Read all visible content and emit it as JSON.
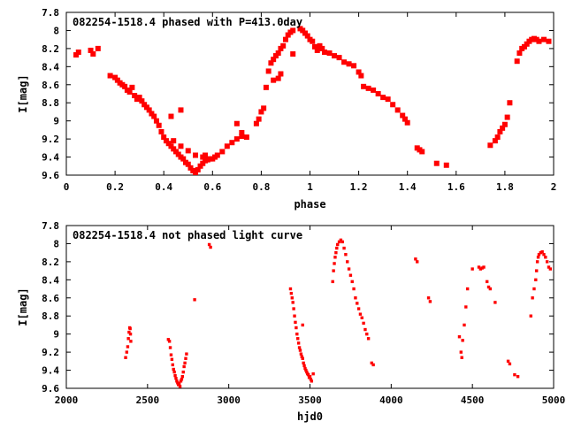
{
  "chart_data": [
    {
      "type": "scatter",
      "title": "082254-1518.4 phased with P=413.0day",
      "xlabel": "phase",
      "ylabel": "I[mag]",
      "xlim": [
        0,
        2
      ],
      "ylim": [
        9.6,
        7.8
      ],
      "y_inverted": true,
      "grid": false,
      "marker_color": "#ff0000",
      "xticks": [
        "0",
        "0.2",
        "0.4",
        "0.6",
        "0.8",
        "1",
        "1.2",
        "1.4",
        "1.6",
        "1.8",
        "2"
      ],
      "yticks": [
        "7.8",
        "8",
        "8.2",
        "8.4",
        "8.6",
        "8.8",
        "9",
        "9.2",
        "9.4",
        "9.6"
      ],
      "series": [
        {
          "points": [
            [
              0.04,
              8.27
            ],
            [
              0.05,
              8.24
            ],
            [
              0.1,
              8.22
            ],
            [
              0.11,
              8.26
            ],
            [
              0.13,
              8.2
            ],
            [
              0.18,
              8.5
            ],
            [
              0.2,
              8.52
            ],
            [
              0.21,
              8.55
            ],
            [
              0.22,
              8.58
            ],
            [
              0.23,
              8.6
            ],
            [
              0.24,
              8.62
            ],
            [
              0.25,
              8.66
            ],
            [
              0.26,
              8.68
            ],
            [
              0.27,
              8.63
            ],
            [
              0.28,
              8.72
            ],
            [
              0.29,
              8.76
            ],
            [
              0.3,
              8.74
            ],
            [
              0.31,
              8.78
            ],
            [
              0.32,
              8.82
            ],
            [
              0.33,
              8.85
            ],
            [
              0.34,
              8.88
            ],
            [
              0.35,
              8.92
            ],
            [
              0.36,
              8.95
            ],
            [
              0.37,
              9.0
            ],
            [
              0.38,
              9.05
            ],
            [
              0.39,
              9.12
            ],
            [
              0.4,
              9.18
            ],
            [
              0.41,
              9.22
            ],
            [
              0.42,
              9.25
            ],
            [
              0.43,
              9.28
            ],
            [
              0.44,
              9.31
            ],
            [
              0.45,
              9.34
            ],
            [
              0.46,
              9.37
            ],
            [
              0.47,
              9.4
            ],
            [
              0.48,
              9.42
            ],
            [
              0.49,
              9.46
            ],
            [
              0.5,
              9.48
            ],
            [
              0.51,
              9.52
            ],
            [
              0.52,
              9.55
            ],
            [
              0.53,
              9.57
            ],
            [
              0.54,
              9.54
            ],
            [
              0.55,
              9.5
            ],
            [
              0.56,
              9.47
            ],
            [
              0.57,
              9.44
            ],
            [
              0.58,
              9.43
            ],
            [
              0.6,
              9.42
            ],
            [
              0.62,
              9.38
            ],
            [
              0.64,
              9.34
            ],
            [
              0.66,
              9.28
            ],
            [
              0.68,
              9.24
            ],
            [
              0.7,
              9.2
            ],
            [
              0.72,
              9.17
            ],
            [
              0.44,
              9.22
            ],
            [
              0.47,
              9.28
            ],
            [
              0.5,
              9.33
            ],
            [
              0.53,
              9.38
            ],
            [
              0.56,
              9.4
            ],
            [
              0.59,
              9.42
            ],
            [
              0.61,
              9.4
            ],
            [
              0.47,
              8.88
            ],
            [
              0.43,
              8.95
            ],
            [
              0.57,
              9.38
            ],
            [
              0.7,
              9.03
            ],
            [
              0.72,
              9.13
            ],
            [
              0.74,
              9.18
            ],
            [
              0.78,
              9.03
            ],
            [
              0.79,
              8.98
            ],
            [
              0.8,
              8.9
            ],
            [
              0.81,
              8.86
            ],
            [
              0.82,
              8.63
            ],
            [
              0.83,
              8.45
            ],
            [
              0.84,
              8.36
            ],
            [
              0.85,
              8.32
            ],
            [
              0.86,
              8.28
            ],
            [
              0.87,
              8.25
            ],
            [
              0.88,
              8.2
            ],
            [
              0.89,
              8.17
            ],
            [
              0.9,
              8.1
            ],
            [
              0.91,
              8.05
            ],
            [
              0.92,
              8.02
            ],
            [
              0.93,
              8.0
            ],
            [
              0.87,
              8.53
            ],
            [
              0.88,
              8.48
            ],
            [
              0.85,
              8.55
            ],
            [
              0.93,
              8.26
            ],
            [
              0.96,
              7.98
            ],
            [
              0.97,
              8.0
            ],
            [
              0.98,
              8.03
            ],
            [
              0.99,
              8.06
            ],
            [
              1.0,
              8.1
            ],
            [
              1.01,
              8.12
            ],
            [
              1.02,
              8.18
            ],
            [
              1.03,
              8.22
            ],
            [
              1.04,
              8.17
            ],
            [
              1.05,
              8.2
            ],
            [
              1.06,
              8.24
            ],
            [
              1.08,
              8.25
            ],
            [
              1.1,
              8.28
            ],
            [
              1.12,
              8.3
            ],
            [
              1.14,
              8.35
            ],
            [
              1.16,
              8.37
            ],
            [
              1.18,
              8.39
            ],
            [
              1.2,
              8.46
            ],
            [
              1.21,
              8.5
            ],
            [
              1.22,
              8.62
            ],
            [
              1.24,
              8.64
            ],
            [
              1.26,
              8.66
            ],
            [
              1.28,
              8.7
            ],
            [
              1.3,
              8.74
            ],
            [
              1.32,
              8.76
            ],
            [
              1.34,
              8.82
            ],
            [
              1.36,
              8.88
            ],
            [
              1.38,
              8.94
            ],
            [
              1.39,
              8.98
            ],
            [
              1.4,
              9.02
            ],
            [
              1.44,
              9.3
            ],
            [
              1.45,
              9.32
            ],
            [
              1.46,
              9.34
            ],
            [
              1.52,
              9.47
            ],
            [
              1.56,
              9.49
            ],
            [
              1.74,
              9.27
            ],
            [
              1.76,
              9.22
            ],
            [
              1.77,
              9.18
            ],
            [
              1.78,
              9.12
            ],
            [
              1.79,
              9.08
            ],
            [
              1.8,
              9.04
            ],
            [
              1.81,
              8.96
            ],
            [
              1.82,
              8.8
            ],
            [
              1.85,
              8.34
            ],
            [
              1.86,
              8.25
            ],
            [
              1.87,
              8.2
            ],
            [
              1.88,
              8.18
            ],
            [
              1.89,
              8.15
            ],
            [
              1.9,
              8.12
            ],
            [
              1.91,
              8.1
            ],
            [
              1.92,
              8.09
            ],
            [
              1.93,
              8.1
            ],
            [
              1.94,
              8.12
            ],
            [
              1.96,
              8.1
            ],
            [
              1.98,
              8.12
            ]
          ]
        }
      ]
    },
    {
      "type": "scatter",
      "title": "082254-1518.4 not phased light curve",
      "xlabel": "hjd0",
      "ylabel": "I[mag]",
      "xlim": [
        2000,
        5000
      ],
      "ylim": [
        9.6,
        7.8
      ],
      "y_inverted": true,
      "grid": false,
      "marker_color": "#ff0000",
      "xticks": [
        "2000",
        "2500",
        "3000",
        "3500",
        "4000",
        "4500",
        "5000"
      ],
      "yticks": [
        "7.8",
        "8",
        "8.2",
        "8.4",
        "8.6",
        "8.8",
        "9",
        "9.2",
        "9.4",
        "9.6"
      ],
      "series": [
        {
          "points": [
            [
              2365,
              9.26
            ],
            [
              2372,
              9.2
            ],
            [
              2378,
              9.14
            ],
            [
              2382,
              9.05
            ],
            [
              2386,
              8.98
            ],
            [
              2390,
              8.93
            ],
            [
              2393,
              8.94
            ],
            [
              2395,
              9.0
            ],
            [
              2397,
              9.08
            ],
            [
              2628,
              9.06
            ],
            [
              2635,
              9.08
            ],
            [
              2640,
              9.15
            ],
            [
              2645,
              9.23
            ],
            [
              2650,
              9.28
            ],
            [
              2655,
              9.34
            ],
            [
              2660,
              9.39
            ],
            [
              2665,
              9.42
            ],
            [
              2670,
              9.46
            ],
            [
              2675,
              9.49
            ],
            [
              2680,
              9.52
            ],
            [
              2685,
              9.54
            ],
            [
              2690,
              9.56
            ],
            [
              2695,
              9.55
            ],
            [
              2700,
              9.58
            ],
            [
              2705,
              9.52
            ],
            [
              2710,
              9.5
            ],
            [
              2715,
              9.47
            ],
            [
              2720,
              9.42
            ],
            [
              2725,
              9.36
            ],
            [
              2730,
              9.32
            ],
            [
              2735,
              9.27
            ],
            [
              2740,
              9.22
            ],
            [
              2790,
              8.62
            ],
            [
              2880,
              8.01
            ],
            [
              2888,
              8.04
            ],
            [
              3380,
              8.5
            ],
            [
              3385,
              8.55
            ],
            [
              3390,
              8.6
            ],
            [
              3395,
              8.65
            ],
            [
              3400,
              8.72
            ],
            [
              3405,
              8.8
            ],
            [
              3410,
              8.87
            ],
            [
              3415,
              8.93
            ],
            [
              3420,
              9.0
            ],
            [
              3425,
              9.05
            ],
            [
              3430,
              9.1
            ],
            [
              3435,
              9.15
            ],
            [
              3440,
              9.18
            ],
            [
              3445,
              9.22
            ],
            [
              3450,
              9.25
            ],
            [
              3455,
              9.27
            ],
            [
              3460,
              9.32
            ],
            [
              3465,
              9.35
            ],
            [
              3470,
              9.38
            ],
            [
              3475,
              9.4
            ],
            [
              3480,
              9.42
            ],
            [
              3485,
              9.44
            ],
            [
              3490,
              9.45
            ],
            [
              3495,
              9.48
            ],
            [
              3500,
              9.47
            ],
            [
              3505,
              9.5
            ],
            [
              3510,
              9.52
            ],
            [
              3520,
              9.44
            ],
            [
              3455,
              8.9
            ],
            [
              3640,
              8.42
            ],
            [
              3645,
              8.3
            ],
            [
              3650,
              8.22
            ],
            [
              3655,
              8.15
            ],
            [
              3660,
              8.1
            ],
            [
              3665,
              8.05
            ],
            [
              3670,
              8.01
            ],
            [
              3680,
              7.98
            ],
            [
              3690,
              7.96
            ],
            [
              3700,
              7.98
            ],
            [
              3710,
              8.05
            ],
            [
              3720,
              8.12
            ],
            [
              3730,
              8.2
            ],
            [
              3740,
              8.28
            ],
            [
              3750,
              8.35
            ],
            [
              3760,
              8.42
            ],
            [
              3770,
              8.5
            ],
            [
              3780,
              8.6
            ],
            [
              3790,
              8.66
            ],
            [
              3800,
              8.72
            ],
            [
              3810,
              8.78
            ],
            [
              3820,
              8.82
            ],
            [
              3830,
              8.88
            ],
            [
              3840,
              8.95
            ],
            [
              3850,
              9.0
            ],
            [
              3860,
              9.05
            ],
            [
              3880,
              9.32
            ],
            [
              3890,
              9.34
            ],
            [
              4150,
              8.17
            ],
            [
              4160,
              8.2
            ],
            [
              4230,
              8.6
            ],
            [
              4240,
              8.64
            ],
            [
              4420,
              9.03
            ],
            [
              4430,
              9.2
            ],
            [
              4435,
              9.26
            ],
            [
              4440,
              9.07
            ],
            [
              4450,
              8.9
            ],
            [
              4460,
              8.7
            ],
            [
              4470,
              8.5
            ],
            [
              4500,
              8.28
            ],
            [
              4540,
              8.26
            ],
            [
              4550,
              8.28
            ],
            [
              4560,
              8.27
            ],
            [
              4570,
              8.26
            ],
            [
              4590,
              8.42
            ],
            [
              4600,
              8.48
            ],
            [
              4610,
              8.5
            ],
            [
              4640,
              8.65
            ],
            [
              4720,
              9.3
            ],
            [
              4730,
              9.33
            ],
            [
              4760,
              9.45
            ],
            [
              4780,
              9.47
            ],
            [
              4860,
              8.8
            ],
            [
              4870,
              8.6
            ],
            [
              4880,
              8.5
            ],
            [
              4890,
              8.4
            ],
            [
              4895,
              8.3
            ],
            [
              4900,
              8.2
            ],
            [
              4905,
              8.15
            ],
            [
              4910,
              8.12
            ],
            [
              4920,
              8.1
            ],
            [
              4930,
              8.09
            ],
            [
              4940,
              8.12
            ],
            [
              4950,
              8.15
            ],
            [
              4960,
              8.2
            ],
            [
              4970,
              8.26
            ],
            [
              4980,
              8.28
            ]
          ]
        }
      ]
    }
  ]
}
